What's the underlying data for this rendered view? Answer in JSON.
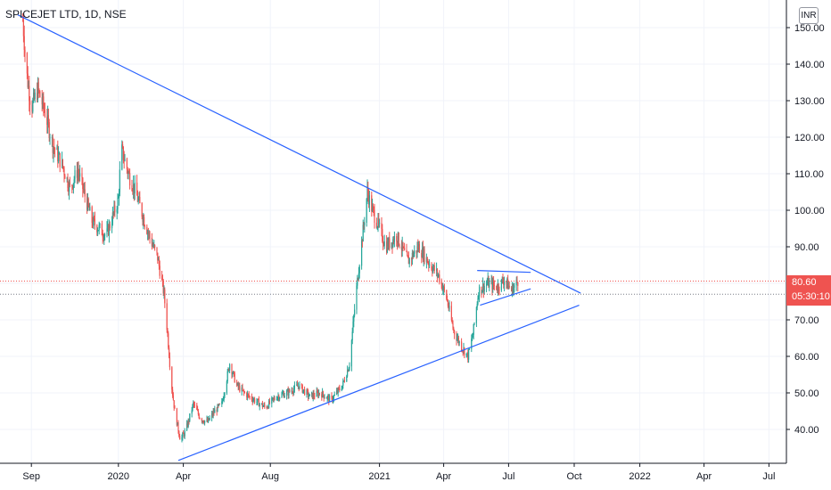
{
  "header": {
    "title": "SPICEJET LTD, 1D, NSE",
    "currency_button": "INR"
  },
  "price_label": {
    "price": "80.60",
    "countdown": "05:30:10"
  },
  "colors": {
    "up": "#26a69a",
    "down": "#ef5350",
    "trendline": "#2962ff",
    "grid": "#f0f3fa",
    "axis": "#131722"
  },
  "chart_data": {
    "type": "candlestick",
    "title": "SPICEJET LTD, 1D, NSE",
    "ylim": [
      31,
      155
    ],
    "y_ticks": [
      "150.00",
      "140.00",
      "130.00",
      "120.00",
      "110.00",
      "100.00",
      "90.00",
      "80.00",
      "70.00",
      "60.00",
      "50.00",
      "40.00"
    ],
    "x_ticks": [
      "Sep",
      "2020",
      "Apr",
      "Aug",
      "2021",
      "Apr",
      "Jul",
      "Oct",
      "2022",
      "Apr",
      "Jul"
    ],
    "x_range": [
      "2019-07-19",
      "2022-07-23"
    ],
    "grid": true,
    "current_price": 80.6,
    "second_price_line": 77.0,
    "price_path": [
      [
        "2019-08-20",
        152
      ],
      [
        "2019-08-25",
        138
      ],
      [
        "2019-09-01",
        128
      ],
      [
        "2019-09-10",
        133
      ],
      [
        "2019-09-20",
        127
      ],
      [
        "2019-10-01",
        118
      ],
      [
        "2019-10-15",
        112
      ],
      [
        "2019-10-25",
        106
      ],
      [
        "2019-11-05",
        111
      ],
      [
        "2019-11-15",
        104
      ],
      [
        "2019-11-25",
        97
      ],
      [
        "2019-12-05",
        95
      ],
      [
        "2019-12-15",
        93
      ],
      [
        "2020-01-01",
        103
      ],
      [
        "2020-01-05",
        117
      ],
      [
        "2020-01-15",
        110
      ],
      [
        "2020-01-25",
        105
      ],
      [
        "2020-02-05",
        98
      ],
      [
        "2020-02-15",
        92
      ],
      [
        "2020-02-25",
        87
      ],
      [
        "2020-03-05",
        77
      ],
      [
        "2020-03-10",
        66
      ],
      [
        "2020-03-15",
        53
      ],
      [
        "2020-03-20",
        45
      ],
      [
        "2020-03-28",
        37
      ],
      [
        "2020-04-05",
        40
      ],
      [
        "2020-04-15",
        47
      ],
      [
        "2020-04-25",
        43
      ],
      [
        "2020-05-05",
        42
      ],
      [
        "2020-05-15",
        45
      ],
      [
        "2020-05-25",
        47
      ],
      [
        "2020-06-05",
        58
      ],
      [
        "2020-06-15",
        52
      ],
      [
        "2020-06-25",
        50
      ],
      [
        "2020-07-10",
        48
      ],
      [
        "2020-07-25",
        46
      ],
      [
        "2020-08-10",
        49
      ],
      [
        "2020-08-25",
        50
      ],
      [
        "2020-09-10",
        52
      ],
      [
        "2020-09-25",
        49
      ],
      [
        "2020-10-10",
        50
      ],
      [
        "2020-10-25",
        48
      ],
      [
        "2020-11-10",
        52
      ],
      [
        "2020-11-20",
        58
      ],
      [
        "2020-11-28",
        75
      ],
      [
        "2020-12-05",
        88
      ],
      [
        "2020-12-10",
        96
      ],
      [
        "2020-12-15",
        105
      ],
      [
        "2020-12-22",
        100
      ],
      [
        "2020-12-30",
        96
      ],
      [
        "2021-01-10",
        90
      ],
      [
        "2021-01-25",
        93
      ],
      [
        "2021-02-10",
        86
      ],
      [
        "2021-02-25",
        90
      ],
      [
        "2021-03-10",
        86
      ],
      [
        "2021-03-25",
        82
      ],
      [
        "2021-04-05",
        76
      ],
      [
        "2021-04-15",
        67
      ],
      [
        "2021-04-25",
        63
      ],
      [
        "2021-05-05",
        60
      ],
      [
        "2021-05-12",
        66
      ],
      [
        "2021-05-20",
        78
      ],
      [
        "2021-06-01",
        80
      ],
      [
        "2021-06-15",
        79
      ],
      [
        "2021-06-25",
        81
      ],
      [
        "2021-07-05",
        78
      ],
      [
        "2021-07-14",
        80.6
      ]
    ],
    "trendlines": [
      {
        "points": [
          [
            "2019-08-13",
            153.5
          ],
          [
            "2021-10-10",
            77.3
          ]
        ]
      },
      {
        "points": [
          [
            "2020-03-25",
            31.5
          ],
          [
            "2021-10-08",
            74
          ]
        ]
      },
      {
        "points": [
          [
            "2021-05-18",
            83.5
          ],
          [
            "2021-08-01",
            83
          ]
        ]
      },
      {
        "points": [
          [
            "2021-05-22",
            74
          ],
          [
            "2021-08-01",
            78.5
          ]
        ]
      }
    ]
  }
}
